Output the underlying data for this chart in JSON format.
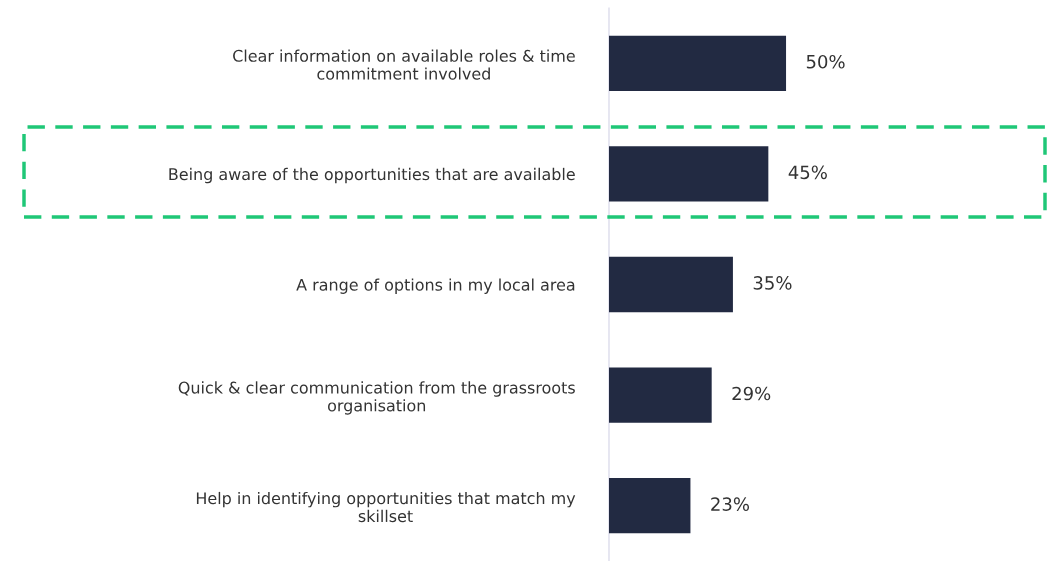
{
  "chart_data": {
    "type": "bar",
    "orientation": "horizontal",
    "categories": [
      "Clear information on available roles & time\ncommitment involved",
      "Being aware of the opportunities that are available",
      "A range of options in my local area",
      "Quick & clear communication from the grassroots\norganisation",
      "Help in identifying opportunities that match my\nskillset"
    ],
    "values": [
      50,
      45,
      35,
      29,
      23
    ],
    "value_labels": [
      "50%",
      "45%",
      "35%",
      "29%",
      "23%"
    ],
    "color": "#222a42",
    "grid": false,
    "legend": false
  }
}
